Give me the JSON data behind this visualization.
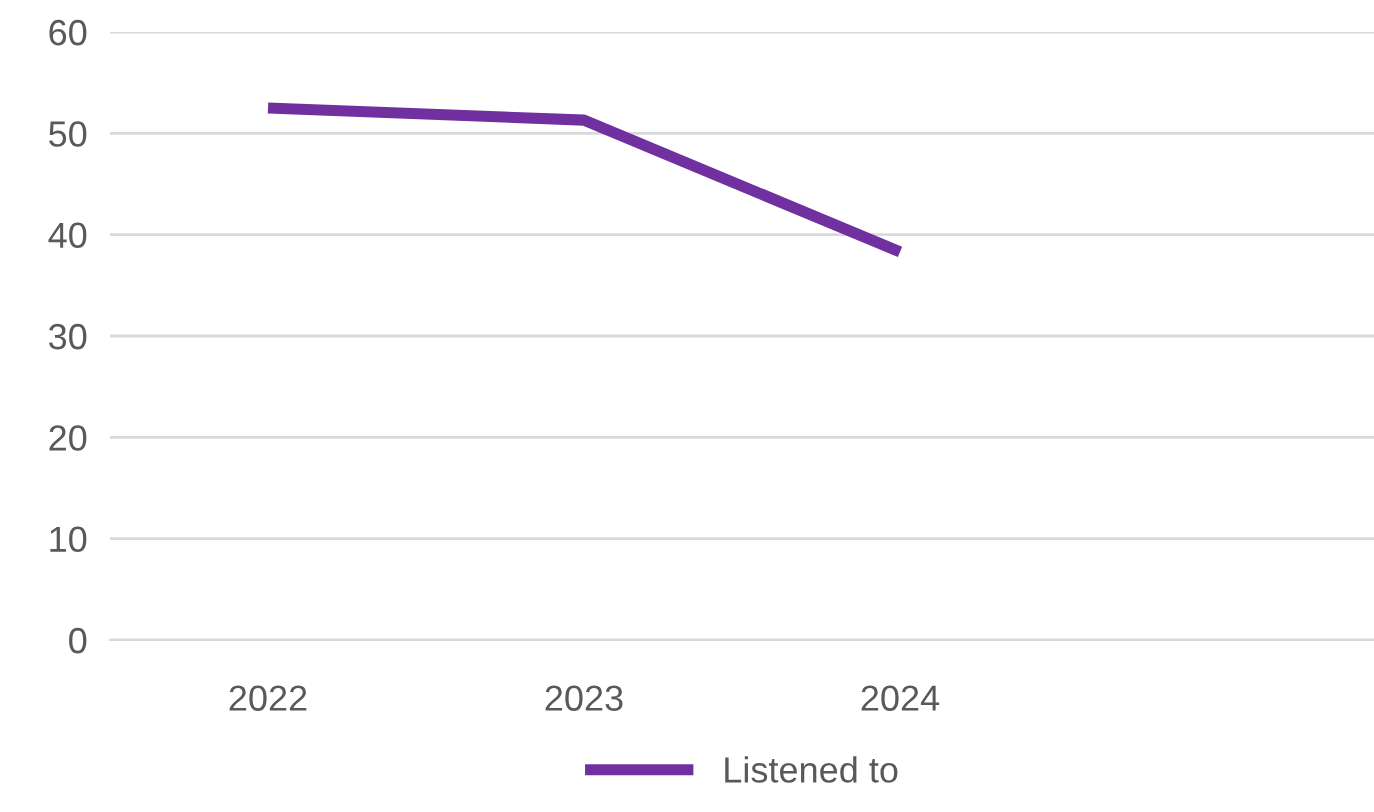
{
  "chart_data": {
    "type": "line",
    "categories": [
      "2022",
      "2023",
      "2024",
      null
    ],
    "series": [
      {
        "name": "Listened to",
        "color": "#7030a0",
        "values": [
          52.5,
          51.3,
          38.3,
          null
        ]
      }
    ],
    "ylim": [
      0,
      60
    ],
    "yticks": [
      0,
      10,
      20,
      30,
      40,
      50,
      60
    ],
    "grid": "y",
    "legend": "bottom",
    "marker": "none",
    "line_style": "solid"
  }
}
